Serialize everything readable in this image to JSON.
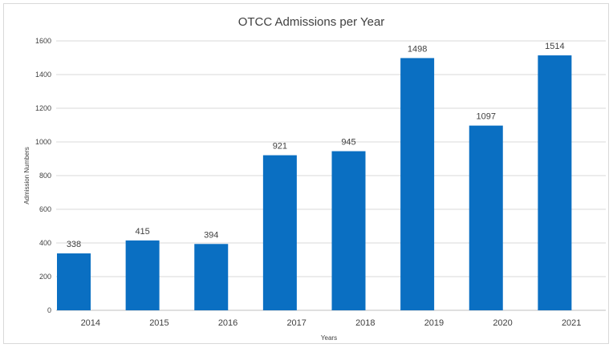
{
  "chart_data": {
    "type": "bar",
    "title": "OTCC Admissions  per Year",
    "xlabel": "Years",
    "ylabel": "Admission Numbers",
    "categories": [
      "2014",
      "2015",
      "2016",
      "2017",
      "2018",
      "2019",
      "2020",
      "2021"
    ],
    "values": [
      338,
      415,
      394,
      921,
      945,
      1498,
      1097,
      1514
    ],
    "yticks": [
      "0",
      "200",
      "400",
      "600",
      "800",
      "1000",
      "1200",
      "1400",
      "1600"
    ],
    "ylim": [
      0,
      1600
    ],
    "grid": true,
    "legend": "none",
    "bar_color": "#0a6fc2"
  }
}
